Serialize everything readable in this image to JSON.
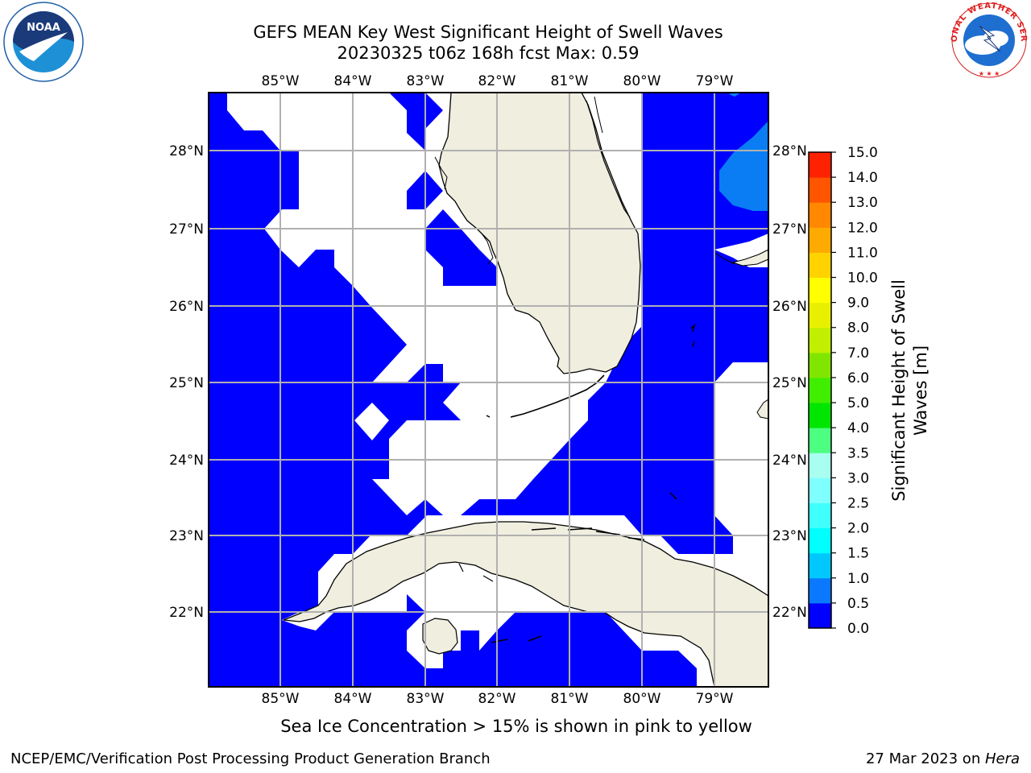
{
  "header": {
    "title_line_1": "GEFS MEAN Key West Significant Height of Swell Waves",
    "title_line_2": "20230325 t06z 168h fcst   Max: 0.59"
  },
  "logos": {
    "left": {
      "name": "noaa-logo",
      "text": "NOAA",
      "ring_text": "NATIONAL OCEANIC AND ATMOSPHERIC ADMINISTRATION · U.S. DEPARTMENT OF COMMERCE"
    },
    "right": {
      "name": "nws-logo",
      "ring_text": "NATIONAL WEATHER SERVICE"
    }
  },
  "map": {
    "lon_labels": [
      "85°W",
      "84°W",
      "83°W",
      "82°W",
      "81°W",
      "80°W",
      "79°W"
    ],
    "lat_labels": [
      "28°N",
      "27°N",
      "26°N",
      "25°N",
      "24°N",
      "23°N",
      "22°N"
    ],
    "ocean_color": "#0000ff",
    "ocean_light_color": "#0a7df5",
    "land_color": "#efeedf",
    "grid_color": "#b0b0b0"
  },
  "colorbar": {
    "label_line_1": "Significant Height of Swell",
    "label_line_2": "Waves [m]",
    "tick_labels": [
      "0.0",
      "0.5",
      "1.0",
      "1.5",
      "2.0",
      "2.5",
      "3.0",
      "3.5",
      "4.0",
      "5.0",
      "6.0",
      "7.0",
      "8.0",
      "9.0",
      "10.0",
      "11.0",
      "12.0",
      "13.0",
      "14.0",
      "15.0"
    ],
    "colors": [
      "#0000ff",
      "#0a78ff",
      "#00c8ff",
      "#00ffff",
      "#40ffff",
      "#80ffff",
      "#a8fff0",
      "#4dff80",
      "#00e600",
      "#40ee00",
      "#80e600",
      "#c0f000",
      "#e8f000",
      "#ffff00",
      "#ffd200",
      "#ffaa00",
      "#ff8800",
      "#ff5500",
      "#ff2200",
      "#ff0000"
    ]
  },
  "ice_note": "Sea Ice Concentration > 15% is shown in pink to yellow",
  "footer": {
    "left": "NCEP/EMC/Verification Post Processing Product Generation Branch",
    "right_date": "27 Mar 2023 on ",
    "right_host": "Hera"
  }
}
